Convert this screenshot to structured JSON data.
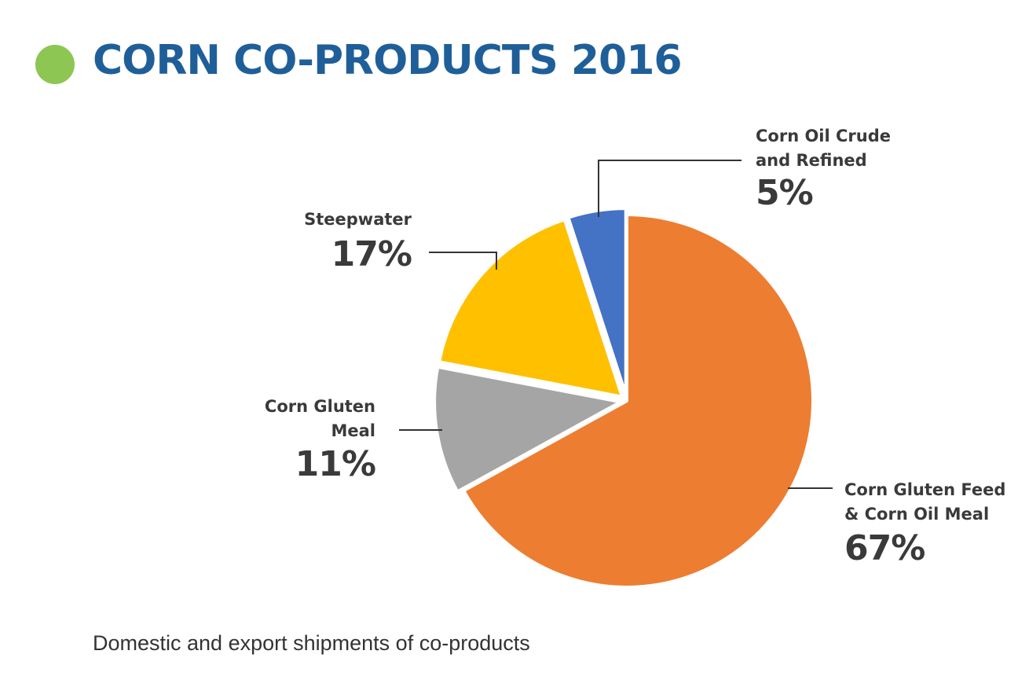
{
  "header": {
    "title": "CORN CO-PRODUCTS 2016",
    "title_color": "#1f5f99",
    "dot_color": "#8dc653"
  },
  "footer": {
    "subtitle": "Domestic and export shipments of co-products"
  },
  "chart_data": {
    "type": "pie",
    "title": "CORN CO-PRODUCTS 2016",
    "start": "12 o'clock",
    "direction": "clockwise",
    "slices": [
      {
        "label_lines": [
          "Corn Gluten Feed",
          "& Corn Oil Meal"
        ],
        "value": 67,
        "value_label": "67%",
        "color": "#ed7d31"
      },
      {
        "label_lines": [
          "Corn Gluten",
          "Meal"
        ],
        "value": 11,
        "value_label": "11%",
        "color": "#a5a5a5"
      },
      {
        "label_lines": [
          "Steepwater"
        ],
        "value": 17,
        "value_label": "17%",
        "color": "#ffc000"
      },
      {
        "label_lines": [
          "Corn Oil Crude",
          "and Refined"
        ],
        "value": 5,
        "value_label": "5%",
        "color": "#4472c4"
      }
    ]
  }
}
